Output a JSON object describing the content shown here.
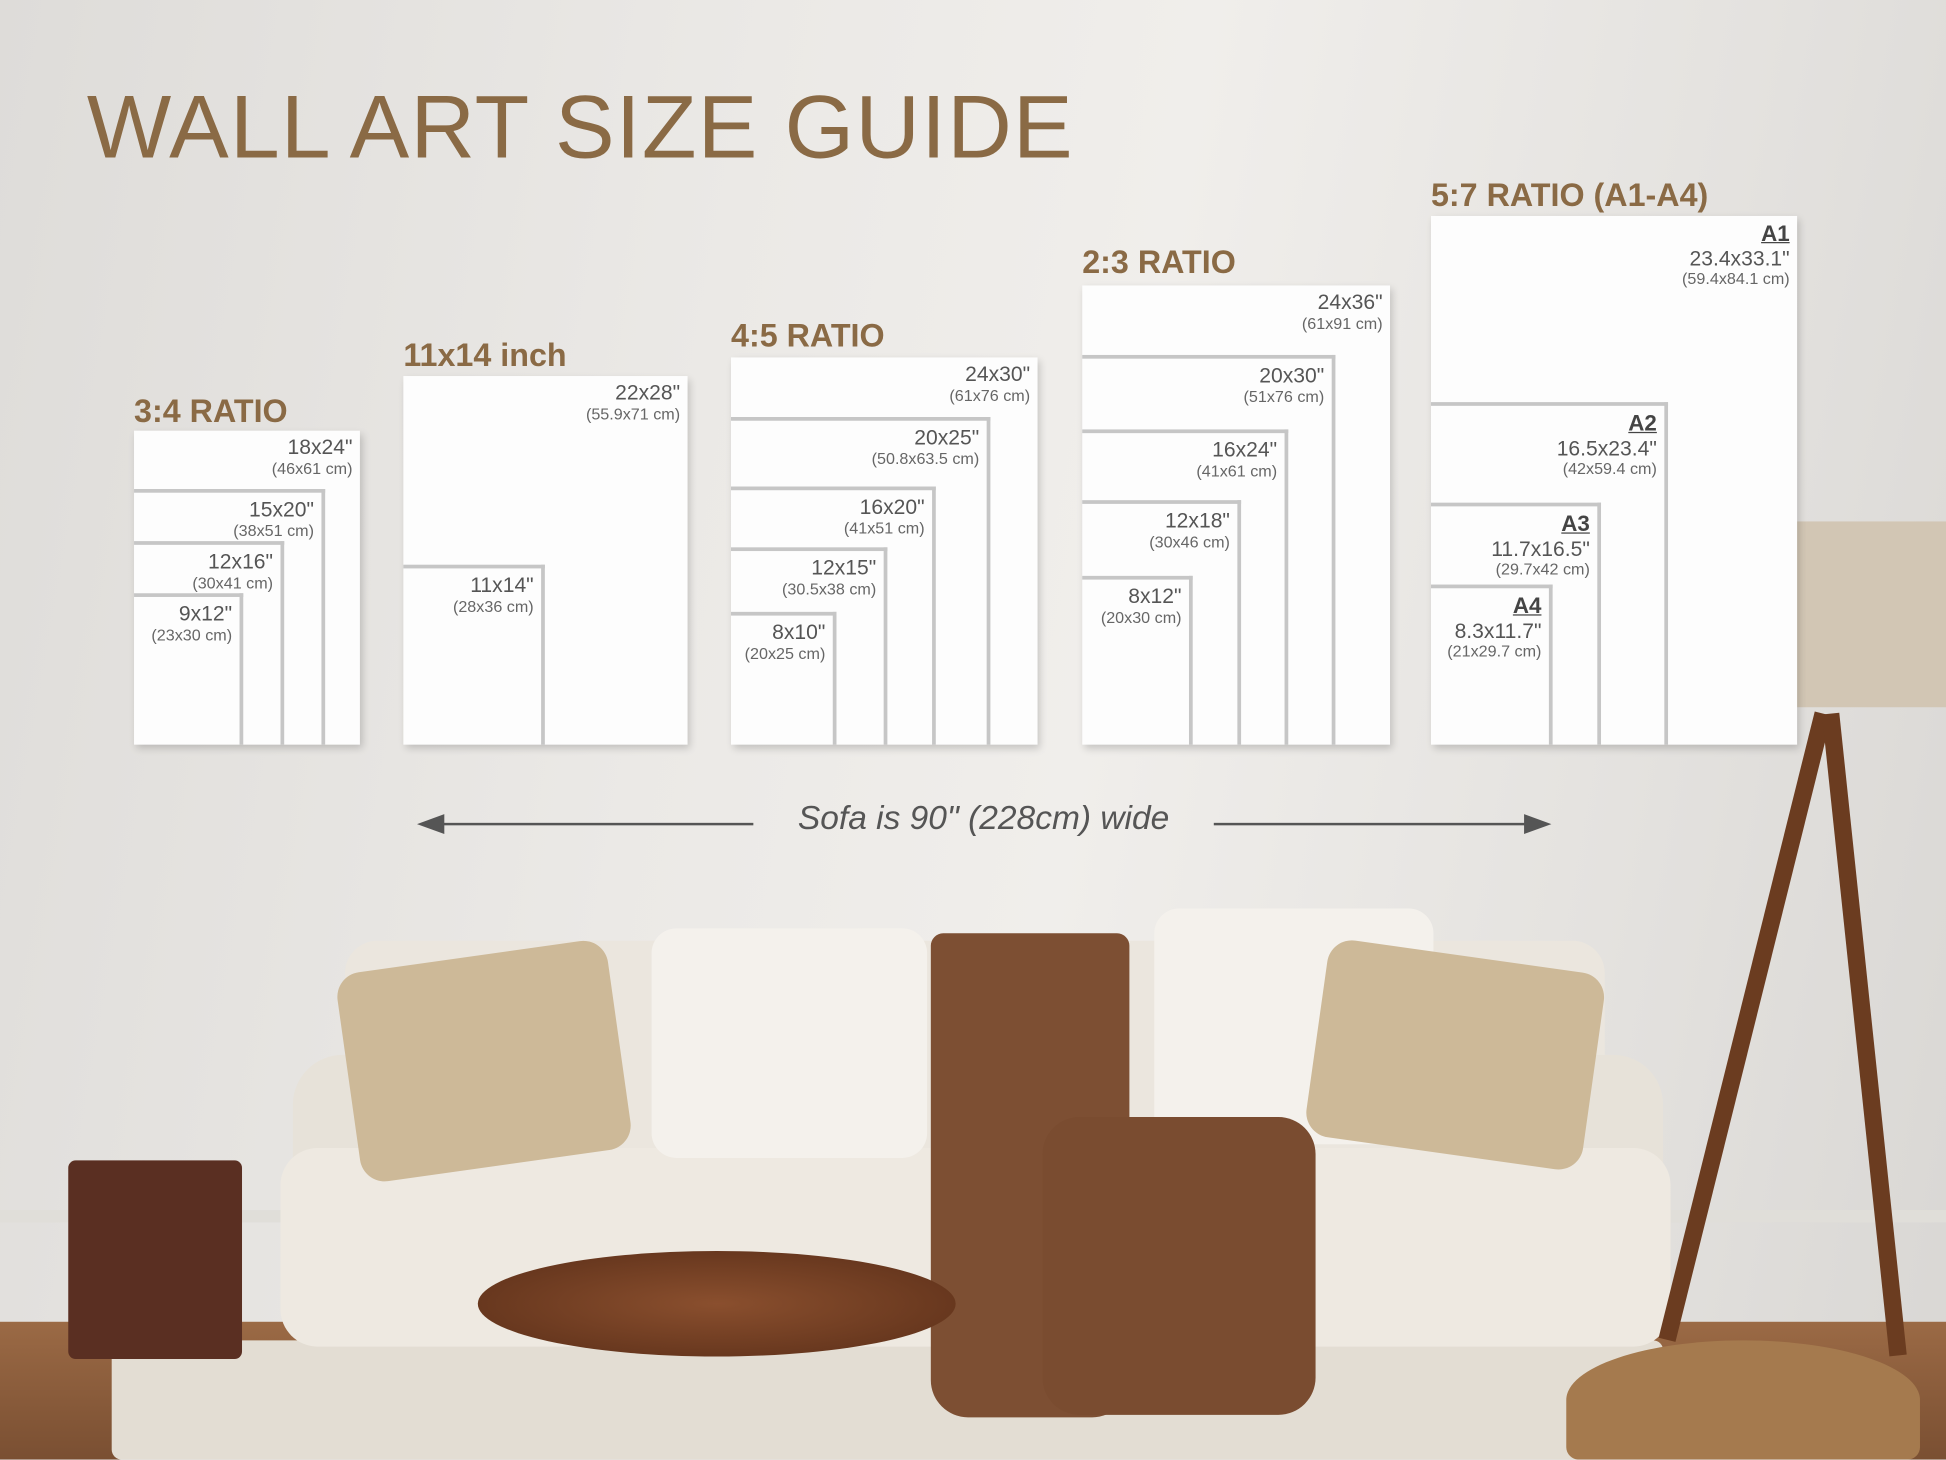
{
  "title": "WALL ART SIZE GUIDE",
  "groups": [
    {
      "label": "3:4 RATIO",
      "sizes": [
        {
          "in": "18x24\"",
          "cm": "(46x61 cm)"
        },
        {
          "in": "15x20\"",
          "cm": "(38x51 cm)"
        },
        {
          "in": "12x16\"",
          "cm": "(30x41 cm)"
        },
        {
          "in": "9x12\"",
          "cm": "(23x30 cm)"
        }
      ]
    },
    {
      "label": "11x14 inch",
      "sizes": [
        {
          "in": "22x28\"",
          "cm": "(55.9x71 cm)"
        },
        {
          "in": "11x14\"",
          "cm": "(28x36 cm)"
        }
      ]
    },
    {
      "label": "4:5 RATIO",
      "sizes": [
        {
          "in": "24x30\"",
          "cm": "(61x76 cm)"
        },
        {
          "in": "20x25\"",
          "cm": "(50.8x63.5 cm)"
        },
        {
          "in": "16x20\"",
          "cm": "(41x51 cm)"
        },
        {
          "in": "12x15\"",
          "cm": "(30.5x38 cm)"
        },
        {
          "in": "8x10\"",
          "cm": "(20x25 cm)"
        }
      ]
    },
    {
      "label": "2:3 RATIO",
      "sizes": [
        {
          "in": "24x36\"",
          "cm": "(61x91 cm)"
        },
        {
          "in": "20x30\"",
          "cm": "(51x76 cm)"
        },
        {
          "in": "16x24\"",
          "cm": "(41x61 cm)"
        },
        {
          "in": "12x18\"",
          "cm": "(30x46 cm)"
        },
        {
          "in": "8x12\"",
          "cm": "(20x30 cm)"
        }
      ]
    },
    {
      "label": "5:7 RATIO (A1-A4)",
      "sizes": [
        {
          "code": "A1",
          "in": "23.4x33.1\"",
          "cm": "(59.4x84.1 cm)"
        },
        {
          "code": "A2",
          "in": "16.5x23.4\"",
          "cm": "(42x59.4 cm)"
        },
        {
          "code": "A3",
          "in": "11.7x16.5\"",
          "cm": "(29.7x42 cm)"
        },
        {
          "code": "A4",
          "in": "8.3x11.7\"",
          "cm": "(21x29.7 cm)"
        }
      ]
    }
  ],
  "sofa_note": "Sofa is 90\" (228cm) wide",
  "colors": {
    "heading": "#8a6a45",
    "frame": "#fdfdfd",
    "frame_border": "#c6c6c6"
  }
}
